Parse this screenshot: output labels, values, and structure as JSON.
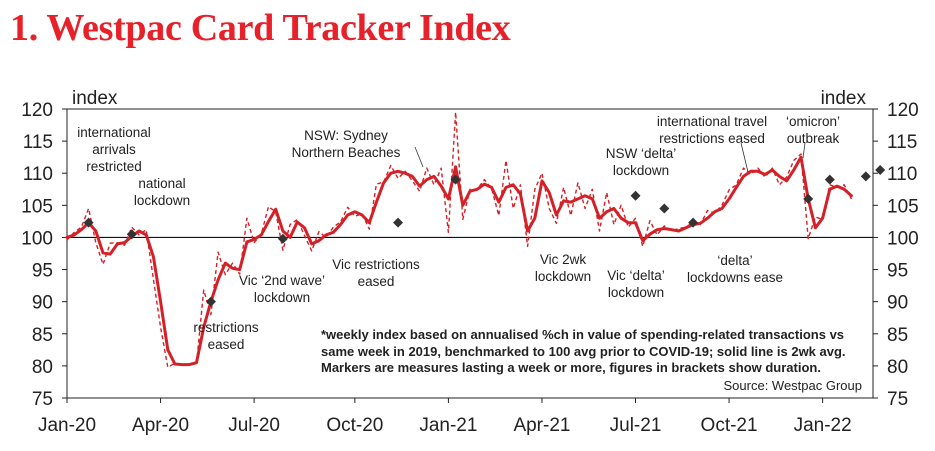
{
  "header": {
    "title": "1. Westpac Card Tracker Index"
  },
  "chart_data": {
    "type": "line",
    "title": "1. Westpac Card Tracker Index",
    "ylabel_left": "index",
    "ylabel_right": "index",
    "ylim": [
      75,
      120
    ],
    "yticks": [
      75,
      80,
      85,
      90,
      95,
      100,
      105,
      110,
      115,
      120
    ],
    "xlim": [
      0,
      112
    ],
    "reference_line": 100,
    "xticks": [
      {
        "x": 0,
        "label": "Jan-20"
      },
      {
        "x": 13,
        "label": "Apr-20"
      },
      {
        "x": 26,
        "label": "Jul-20"
      },
      {
        "x": 40,
        "label": "Oct-20"
      },
      {
        "x": 53,
        "label": "Jan-21"
      },
      {
        "x": 66,
        "label": "Apr-21"
      },
      {
        "x": 79,
        "label": "Jul-21"
      },
      {
        "x": 92,
        "label": "Oct-21"
      },
      {
        "x": 105,
        "label": "Jan-22"
      }
    ],
    "x_units": "weeks since start of Jan-20",
    "series": [
      {
        "name": "2wk avg",
        "style": "solid",
        "color": "#d42027",
        "points": [
          [
            0,
            100
          ],
          [
            1,
            100.4
          ],
          [
            2,
            101.2
          ],
          [
            3,
            102.3
          ],
          [
            4,
            101
          ],
          [
            5,
            97.6
          ],
          [
            6,
            97.4
          ],
          [
            7,
            99
          ],
          [
            8,
            99.2
          ],
          [
            9,
            100.2
          ],
          [
            10,
            101
          ],
          [
            11,
            100.4
          ],
          [
            12,
            97
          ],
          [
            13,
            90
          ],
          [
            14,
            82.5
          ],
          [
            15,
            80.3
          ],
          [
            16,
            80.2
          ],
          [
            17,
            80.2
          ],
          [
            18,
            80.5
          ],
          [
            19,
            86
          ],
          [
            20,
            90
          ],
          [
            21,
            93.4
          ],
          [
            22,
            96
          ],
          [
            23,
            95.2
          ],
          [
            24,
            95
          ],
          [
            25,
            99.3
          ],
          [
            26,
            99.7
          ],
          [
            27,
            100.4
          ],
          [
            28,
            102.5
          ],
          [
            29,
            104.4
          ],
          [
            30,
            101
          ],
          [
            31,
            100
          ],
          [
            32,
            102.4
          ],
          [
            33,
            101.5
          ],
          [
            34,
            99
          ],
          [
            35,
            99.5
          ],
          [
            36,
            100.4
          ],
          [
            37,
            100.8
          ],
          [
            38,
            102
          ],
          [
            39,
            103.5
          ],
          [
            40,
            104
          ],
          [
            41,
            103.5
          ],
          [
            42,
            102.3
          ],
          [
            43,
            105.5
          ],
          [
            44,
            108.5
          ],
          [
            45,
            110
          ],
          [
            46,
            110.3
          ],
          [
            47,
            110
          ],
          [
            48,
            109.5
          ],
          [
            49,
            108
          ],
          [
            50,
            109
          ],
          [
            51,
            109.5
          ],
          [
            52,
            108
          ],
          [
            53,
            106
          ],
          [
            54,
            111
          ],
          [
            55,
            105
          ],
          [
            56,
            107.2
          ],
          [
            57,
            107.5
          ],
          [
            58,
            108.3
          ],
          [
            59,
            107.8
          ],
          [
            60,
            105.5
          ],
          [
            61,
            107.8
          ],
          [
            62,
            108.2
          ],
          [
            63,
            106.8
          ],
          [
            64,
            101
          ],
          [
            65,
            103
          ],
          [
            66,
            108.8
          ],
          [
            67,
            107
          ],
          [
            68,
            103.5
          ],
          [
            69,
            105.7
          ],
          [
            70,
            105.5
          ],
          [
            71,
            106
          ],
          [
            72,
            106.5
          ],
          [
            73,
            106
          ],
          [
            74,
            103
          ],
          [
            75,
            104
          ],
          [
            76,
            104.5
          ],
          [
            77,
            103
          ],
          [
            78,
            102.3
          ],
          [
            79,
            102.3
          ],
          [
            80,
            99.5
          ],
          [
            81,
            100.5
          ],
          [
            82,
            101.2
          ],
          [
            83,
            101.4
          ],
          [
            84,
            101.2
          ],
          [
            85,
            101
          ],
          [
            86,
            101.5
          ],
          [
            87,
            102
          ],
          [
            88,
            102.2
          ],
          [
            89,
            103
          ],
          [
            90,
            104
          ],
          [
            91,
            104.5
          ],
          [
            92,
            106
          ],
          [
            93,
            107.8
          ],
          [
            94,
            109.5
          ],
          [
            95,
            110.3
          ],
          [
            96,
            110.3
          ],
          [
            97,
            109.8
          ],
          [
            98,
            110.5
          ],
          [
            99,
            109.5
          ],
          [
            100,
            108.8
          ],
          [
            101,
            110.5
          ],
          [
            102,
            112.5
          ],
          [
            103,
            106
          ],
          [
            104,
            101.5
          ],
          [
            105,
            103
          ],
          [
            106,
            107.5
          ],
          [
            107,
            108
          ],
          [
            108,
            107.5
          ],
          [
            109,
            106.5
          ]
        ]
      },
      {
        "name": "weekly index",
        "style": "dashed",
        "color": "#d42027",
        "points": [
          [
            0,
            99.6
          ],
          [
            1,
            100.8
          ],
          [
            2,
            101.6
          ],
          [
            3,
            104.5
          ],
          [
            4,
            99.2
          ],
          [
            5,
            95.8
          ],
          [
            6,
            99.1
          ],
          [
            7,
            99.2
          ],
          [
            8,
            98.8
          ],
          [
            9,
            101.6
          ],
          [
            10,
            100.4
          ],
          [
            11,
            101.2
          ],
          [
            12,
            93.5
          ],
          [
            13,
            86
          ],
          [
            14,
            79.8
          ],
          [
            15,
            80.4
          ],
          [
            16,
            80.1
          ],
          [
            17,
            80.3
          ],
          [
            18,
            80.3
          ],
          [
            19,
            91.8
          ],
          [
            20,
            88
          ],
          [
            21,
            97.7
          ],
          [
            22,
            94.2
          ],
          [
            23,
            96
          ],
          [
            24,
            94.3
          ],
          [
            25,
            103
          ],
          [
            26,
            99.2
          ],
          [
            27,
            100.5
          ],
          [
            28,
            104.8
          ],
          [
            29,
            104
          ],
          [
            30,
            98
          ],
          [
            31,
            102
          ],
          [
            32,
            102.8
          ],
          [
            33,
            100.3
          ],
          [
            34,
            97.9
          ],
          [
            35,
            100.9
          ],
          [
            36,
            100
          ],
          [
            37,
            101.6
          ],
          [
            38,
            102.4
          ],
          [
            39,
            104.7
          ],
          [
            40,
            103.3
          ],
          [
            41,
            103.7
          ],
          [
            42,
            101.3
          ],
          [
            43,
            108.3
          ],
          [
            44,
            108.6
          ],
          [
            45,
            111.2
          ],
          [
            46,
            109.2
          ],
          [
            47,
            110.3
          ],
          [
            48,
            108.8
          ],
          [
            49,
            107.2
          ],
          [
            50,
            110.8
          ],
          [
            51,
            108.2
          ],
          [
            52,
            110.8
          ],
          [
            53,
            100.8
          ],
          [
            54,
            119.5
          ],
          [
            55,
            102.8
          ],
          [
            56,
            107.5
          ],
          [
            57,
            107.5
          ],
          [
            58,
            109
          ],
          [
            59,
            107.6
          ],
          [
            60,
            103.4
          ],
          [
            61,
            112
          ],
          [
            62,
            104.5
          ],
          [
            63,
            108.2
          ],
          [
            64,
            98.6
          ],
          [
            65,
            107.5
          ],
          [
            66,
            110
          ],
          [
            67,
            104.5
          ],
          [
            68,
            102.2
          ],
          [
            69,
            107.8
          ],
          [
            70,
            103.4
          ],
          [
            71,
            108.5
          ],
          [
            72,
            104.5
          ],
          [
            73,
            107.5
          ],
          [
            74,
            101
          ],
          [
            75,
            107
          ],
          [
            76,
            102
          ],
          [
            77,
            105
          ],
          [
            78,
            101.6
          ],
          [
            79,
            103
          ],
          [
            80,
            98.6
          ],
          [
            81,
            102.6
          ],
          [
            82,
            100.4
          ],
          [
            83,
            101.8
          ],
          [
            84,
            101
          ],
          [
            85,
            101.4
          ],
          [
            86,
            101.6
          ],
          [
            87,
            102.4
          ],
          [
            88,
            102
          ],
          [
            89,
            104.2
          ],
          [
            90,
            103.8
          ],
          [
            91,
            105
          ],
          [
            92,
            107.4
          ],
          [
            93,
            108.2
          ],
          [
            94,
            110.8
          ],
          [
            95,
            109.8
          ],
          [
            96,
            110.8
          ],
          [
            97,
            109.4
          ],
          [
            98,
            110.8
          ],
          [
            99,
            108.2
          ],
          [
            100,
            109.4
          ],
          [
            101,
            112
          ],
          [
            102,
            113
          ],
          [
            103,
            99.8
          ],
          [
            104,
            103.2
          ],
          [
            105,
            102.8
          ],
          [
            106,
            108.2
          ],
          [
            107,
            107.8
          ],
          [
            108,
            108.2
          ],
          [
            109,
            106
          ]
        ]
      }
    ],
    "markers": [
      [
        3,
        102.3
      ],
      [
        9,
        100.5
      ],
      [
        20,
        90
      ],
      [
        30,
        99.8
      ],
      [
        46,
        102.3
      ],
      [
        54,
        109
      ],
      [
        79,
        106.5
      ],
      [
        83,
        104.5
      ],
      [
        87,
        102.3
      ],
      [
        103,
        106
      ],
      [
        106,
        109
      ],
      [
        111,
        109.5
      ],
      [
        113,
        110.5
      ]
    ],
    "annotations": [
      {
        "lines": [
          "international",
          "arrivals",
          "restricted"
        ]
      },
      {
        "lines": [
          "national",
          "lockdown"
        ]
      },
      {
        "lines": [
          "restrictions",
          "eased"
        ]
      },
      {
        "lines": [
          "Vic ‘2nd wave’",
          "lockdown"
        ]
      },
      {
        "lines": [
          "Vic restrictions",
          "eased"
        ]
      },
      {
        "lines": [
          "NSW: Sydney",
          "Northern Beaches"
        ]
      },
      {
        "lines": [
          "Vic 2wk",
          "lockdown"
        ]
      },
      {
        "lines": [
          "NSW ‘delta’",
          "lockdown"
        ]
      },
      {
        "lines": [
          "Vic ‘delta’",
          "lockdown"
        ]
      },
      {
        "lines": [
          "international travel",
          "restrictions eased"
        ]
      },
      {
        "lines": [
          "‘delta’",
          "lockdowns ease"
        ]
      },
      {
        "lines": [
          "‘omicron’",
          "outbreak"
        ]
      }
    ]
  },
  "footnote": "*weekly index based on annualised %ch in value of spending-related transactions vs same week in 2019, benchmarked to 100 avg prior to COVID-19; solid line is 2wk avg. Markers are measures lasting a week or more, figures in brackets show duration.",
  "source": "Source: Westpac Group"
}
